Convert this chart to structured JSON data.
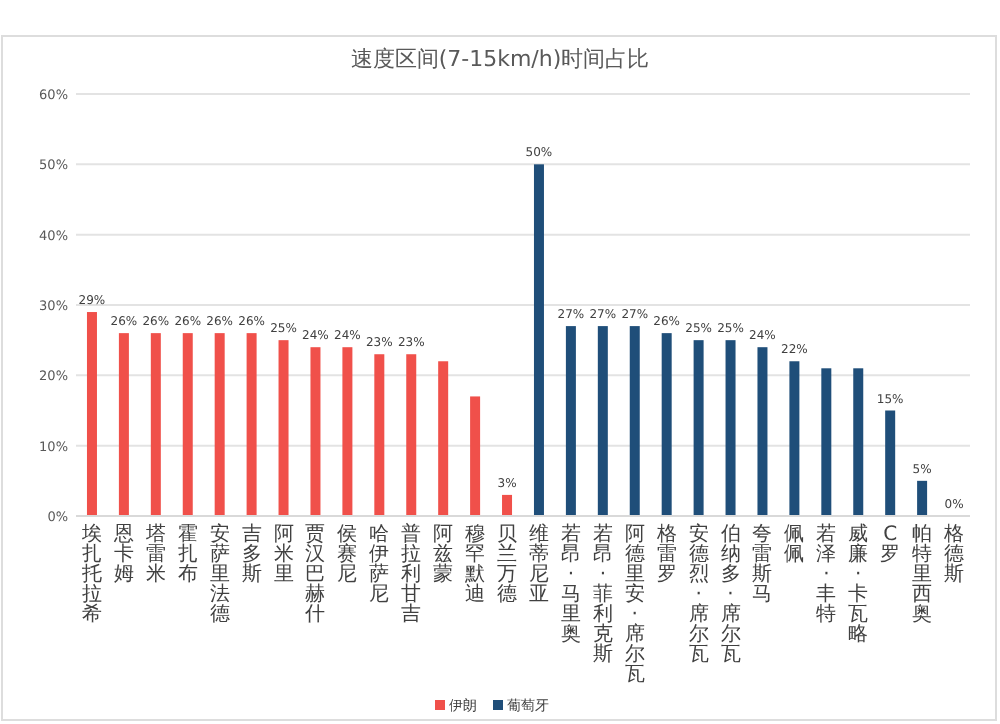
{
  "chart_data": {
    "type": "bar",
    "title": "速度区间(7-15km/h)时间占比",
    "categories": [
      "埃扎托拉希",
      "恩卡姆",
      "塔雷米",
      "霍扎布",
      "安萨里法德",
      "吉多斯",
      "阿米里",
      "贾汉巴赫什",
      "侯赛尼",
      "哈伊萨尼",
      "普拉利甘吉",
      "阿兹蒙",
      "穆罕默迪",
      "贝兰万德",
      "维蒂尼亚",
      "若昂·马里奥",
      "若昂·菲利克斯",
      "阿德里安·席尔瓦",
      "格雷罗",
      "安德烈·席尔瓦",
      "伯纳多·席尔瓦",
      "夸雷斯马",
      "佩佩",
      "若泽·丰特",
      "威廉·卡瓦略",
      "C罗",
      "帕特里西奥",
      "格德斯"
    ],
    "series": [
      {
        "name": "伊朗",
        "color": "#f0504a",
        "values": [
          29,
          26,
          26,
          26,
          26,
          26,
          25,
          24,
          24,
          23,
          23,
          22,
          17,
          3,
          null,
          null,
          null,
          null,
          null,
          null,
          null,
          null,
          null,
          null,
          null,
          null,
          null,
          null
        ],
        "value_labels": [
          "29%",
          "26%",
          "26%",
          "26%",
          "26%",
          "26%",
          "25%",
          "24%",
          "24%",
          "23%",
          "23%",
          null,
          null,
          "3%",
          null,
          null,
          null,
          null,
          null,
          null,
          null,
          null,
          null,
          null,
          null,
          null,
          null,
          null
        ]
      },
      {
        "name": "葡萄牙",
        "color": "#1f4e79",
        "values": [
          null,
          null,
          null,
          null,
          null,
          null,
          null,
          null,
          null,
          null,
          null,
          null,
          null,
          null,
          50,
          27,
          27,
          27,
          26,
          25,
          25,
          24,
          22,
          21,
          21,
          15,
          5,
          0
        ],
        "value_labels": [
          null,
          null,
          null,
          null,
          null,
          null,
          null,
          null,
          null,
          null,
          null,
          null,
          null,
          null,
          "50%",
          "27%",
          "27%",
          "27%",
          "26%",
          "25%",
          "25%",
          "24%",
          "22%",
          null,
          null,
          "15%",
          "5%",
          "0%"
        ]
      }
    ],
    "ylim": [
      0,
      60
    ],
    "yticks": [
      {
        "value": 0,
        "label": "0%"
      },
      {
        "value": 10,
        "label": "10%"
      },
      {
        "value": 20,
        "label": "20%"
      },
      {
        "value": 30,
        "label": "30%"
      },
      {
        "value": 40,
        "label": "40%"
      },
      {
        "value": 50,
        "label": "50%"
      },
      {
        "value": 60,
        "label": "60%"
      }
    ],
    "grid": "y",
    "legend": "bottom"
  }
}
